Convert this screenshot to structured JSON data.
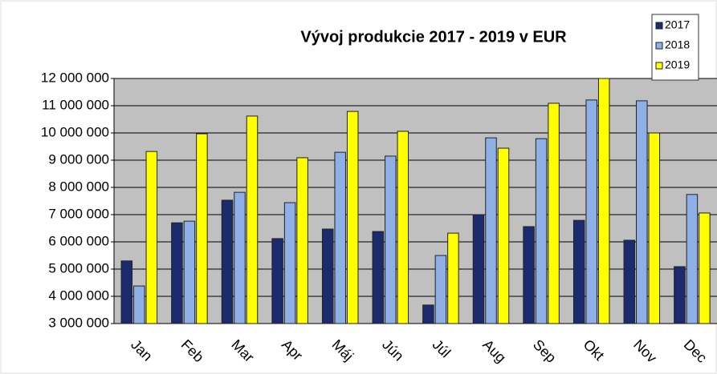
{
  "chart_data": {
    "type": "bar",
    "title": "Vývoj produkcie 2017 - 2019 v EUR",
    "categories": [
      "Jan",
      "Feb",
      "Mar",
      "Apr",
      "Máj",
      "Jún",
      "Júl",
      "Aug",
      "Sep",
      "Okt",
      "Nov",
      "Dec"
    ],
    "series": [
      {
        "name": "2017",
        "color": "#1c2a6e",
        "values": [
          5300000,
          6700000,
          7530000,
          6120000,
          6470000,
          6380000,
          3680000,
          7000000,
          6560000,
          6790000,
          6060000,
          5090000
        ]
      },
      {
        "name": "2018",
        "color": "#8fb0e6",
        "values": [
          4380000,
          6760000,
          7820000,
          7440000,
          9290000,
          9150000,
          5500000,
          9820000,
          9790000,
          11210000,
          11180000,
          7740000
        ]
      },
      {
        "name": "2019",
        "color": "#ffff00",
        "values": [
          9320000,
          9970000,
          10620000,
          9090000,
          10790000,
          10060000,
          6320000,
          9440000,
          11090000,
          12000000,
          10000000,
          7060000
        ]
      }
    ],
    "ylim": [
      3000000,
      12000000
    ],
    "yticks": [
      {
        "value": 3000000,
        "label": "3 000 000"
      },
      {
        "value": 4000000,
        "label": "4 000 000"
      },
      {
        "value": 5000000,
        "label": "5 000 000"
      },
      {
        "value": 6000000,
        "label": "6 000 000"
      },
      {
        "value": 7000000,
        "label": "7 000 000"
      },
      {
        "value": 8000000,
        "label": "8 000 000"
      },
      {
        "value": 9000000,
        "label": "9 000 000"
      },
      {
        "value": 10000000,
        "label": "10 000 000"
      },
      {
        "value": 11000000,
        "label": "11 000 000"
      },
      {
        "value": 12000000,
        "label": "12 000 000"
      }
    ],
    "grid": true,
    "legend": "top-right"
  }
}
